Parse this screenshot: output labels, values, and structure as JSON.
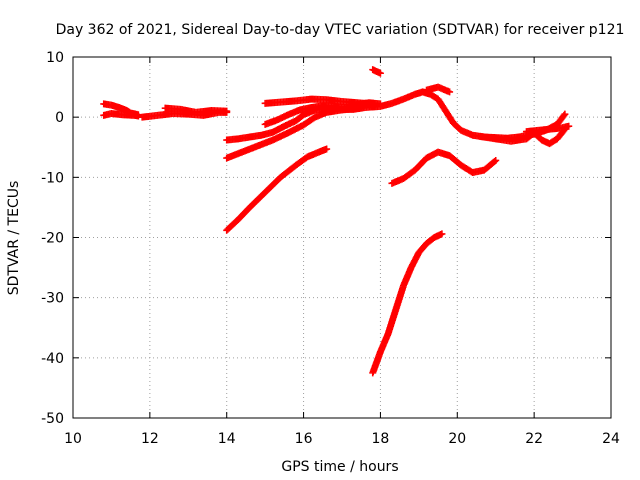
{
  "chart_data": {
    "type": "scatter",
    "title": "Day 362 of 2021, Sidereal Day-to-day VTEC variation (SDTVAR) for receiver p121",
    "xlabel": "GPS time / hours",
    "ylabel": "SDTVAR / TECUs",
    "xlim": [
      10,
      24
    ],
    "ylim": [
      -50,
      10
    ],
    "x_ticks": [
      10,
      12,
      14,
      16,
      18,
      20,
      22,
      24
    ],
    "y_ticks": [
      -50,
      -40,
      -30,
      -20,
      -10,
      0,
      10
    ],
    "x_tick_labels": [
      "10",
      "12",
      "14",
      "16",
      "18",
      "20",
      "22",
      "24"
    ],
    "y_tick_labels": [
      "-50",
      "-40",
      "-30",
      "-20",
      "-10",
      "0",
      "10"
    ],
    "grid": true,
    "legend": "none",
    "marker": "plus",
    "color": "#ff0000",
    "series": [
      {
        "x": [
          10.8,
          11.0,
          11.2,
          11.4,
          11.5,
          11.7
        ],
        "y": [
          2.2,
          2.0,
          1.6,
          1.1,
          0.7,
          0.4
        ]
      },
      {
        "x": [
          10.8,
          11.0,
          11.3,
          11.6,
          11.7
        ],
        "y": [
          0.3,
          0.6,
          0.4,
          0.3,
          0.2
        ]
      },
      {
        "x": [
          11.8,
          12.2,
          12.6,
          13.0,
          13.4,
          13.8,
          14.0
        ],
        "y": [
          0.0,
          0.3,
          0.6,
          0.5,
          0.3,
          0.8,
          0.8
        ]
      },
      {
        "x": [
          12.4,
          12.8,
          13.2,
          13.6,
          14.0
        ],
        "y": [
          1.5,
          1.3,
          0.8,
          1.1,
          1.0
        ]
      },
      {
        "x": [
          14.0,
          14.3,
          14.6,
          14.9,
          15.2,
          15.5,
          15.8,
          16.0,
          16.3,
          16.6,
          17.0,
          17.3,
          17.6,
          18.0,
          18.3,
          18.6,
          18.9,
          19.1,
          19.3,
          19.5,
          19.7,
          19.9,
          20.1,
          20.4,
          20.7,
          21.0,
          21.3,
          21.6,
          22.0,
          22.3,
          22.6,
          22.8
        ],
        "y": [
          -3.8,
          -3.6,
          -3.3,
          -3.0,
          -2.5,
          -1.5,
          -0.6,
          0.4,
          1.2,
          1.5,
          1.3,
          1.3,
          1.6,
          1.8,
          2.3,
          3.0,
          3.8,
          4.2,
          3.8,
          3.0,
          1.0,
          -1.0,
          -2.2,
          -3.0,
          -3.3,
          -3.4,
          -3.5,
          -3.3,
          -2.8,
          -2.2,
          -1.2,
          0.5
        ]
      },
      {
        "x": [
          14.0,
          14.4,
          14.8,
          15.2,
          15.6,
          16.0,
          16.3,
          16.6,
          17.0,
          17.4
        ],
        "y": [
          -6.8,
          -5.8,
          -4.8,
          -3.8,
          -2.6,
          -1.3,
          0.0,
          0.8,
          1.2,
          1.5
        ]
      },
      {
        "x": [
          15.0,
          15.3,
          15.6,
          15.9,
          16.2,
          16.5,
          16.8,
          17.1,
          17.4,
          17.7,
          18.0
        ],
        "y": [
          -1.2,
          -0.5,
          0.4,
          1.2,
          1.6,
          1.9,
          1.8,
          1.6,
          2.1,
          2.4,
          2.2
        ]
      },
      {
        "x": [
          15.0,
          15.4,
          15.8,
          16.2,
          16.6,
          17.0,
          17.4,
          17.8
        ],
        "y": [
          2.3,
          2.5,
          2.7,
          3.0,
          2.9,
          2.6,
          2.4,
          2.2
        ]
      },
      {
        "x": [
          19.2,
          19.5,
          19.8
        ],
        "y": [
          4.5,
          5.0,
          4.2
        ]
      },
      {
        "x": [
          17.8,
          17.9,
          18.0
        ],
        "y": [
          7.9,
          7.6,
          7.3
        ]
      },
      {
        "x": [
          14.0,
          14.3,
          14.6,
          15.0,
          15.4,
          15.8,
          16.1,
          16.4,
          16.6
        ],
        "y": [
          -18.8,
          -17.0,
          -15.0,
          -12.5,
          -10.0,
          -8.0,
          -6.6,
          -5.8,
          -5.3
        ]
      },
      {
        "x": [
          18.3,
          18.6,
          18.9,
          19.2,
          19.5,
          19.8,
          20.1,
          20.4,
          20.7,
          21.0
        ],
        "y": [
          -11.0,
          -10.2,
          -8.8,
          -6.8,
          -5.8,
          -6.4,
          -8.0,
          -9.2,
          -8.8,
          -7.2
        ]
      },
      {
        "x": [
          17.8,
          18.0,
          18.2,
          18.4,
          18.6,
          18.8,
          19.0,
          19.2,
          19.4,
          19.6
        ],
        "y": [
          -42.5,
          -39.0,
          -36.0,
          -32.0,
          -28.0,
          -25.0,
          -22.5,
          -21.0,
          -20.0,
          -19.4
        ]
      },
      {
        "x": [
          20.6,
          21.0,
          21.4,
          21.8,
          22.0,
          22.2,
          22.4,
          22.6,
          22.8
        ],
        "y": [
          -3.2,
          -3.6,
          -4.0,
          -3.6,
          -2.6,
          -3.8,
          -4.4,
          -3.6,
          -2.0
        ]
      },
      {
        "x": [
          21.8,
          22.1,
          22.4,
          22.7,
          22.9
        ],
        "y": [
          -2.4,
          -2.2,
          -2.0,
          -1.8,
          -1.5
        ]
      }
    ]
  }
}
